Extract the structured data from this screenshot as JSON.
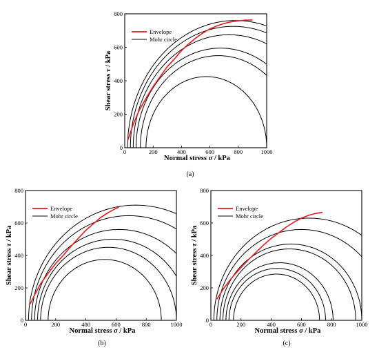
{
  "chart_data": [
    {
      "panel": "(a)",
      "type": "line",
      "xlabel": "Normal stress",
      "xsymbol": "σ",
      "xunit": "/ kPa",
      "ylabel": "Shear stress",
      "ysymbol": "τ",
      "yunit": "/ kPa",
      "xlim": [
        0,
        1000
      ],
      "ylim": [
        0,
        800
      ],
      "xticks": [
        0,
        200,
        400,
        600,
        800,
        1000
      ],
      "yticks": [
        0,
        200,
        400,
        600,
        800
      ],
      "legend": {
        "position": "top-left",
        "items": [
          {
            "name": "Envelope",
            "color": "#e8161d"
          },
          {
            "name": "Mohr circle",
            "color": "#000000"
          }
        ]
      },
      "mohr_circles": [
        {
          "sigma3": 20,
          "sigma1": 1540
        },
        {
          "sigma3": 40,
          "sigma1": 1490
        },
        {
          "sigma3": 60,
          "sigma1": 1410
        },
        {
          "sigma3": 80,
          "sigma1": 1270
        },
        {
          "sigma3": 110,
          "sigma1": 1210
        },
        {
          "sigma3": 150,
          "sigma1": 1000
        }
      ],
      "envelope": {
        "x": [
          20,
          60,
          100,
          150,
          200,
          250,
          300,
          350,
          400,
          450,
          500,
          550,
          600,
          650,
          700,
          750,
          800,
          850,
          900
        ],
        "y": [
          40,
          140,
          220,
          295,
          365,
          425,
          485,
          530,
          580,
          620,
          655,
          685,
          710,
          728,
          742,
          752,
          758,
          762,
          763
        ]
      }
    },
    {
      "panel": "(b)",
      "type": "line",
      "xlabel": "Normal stress",
      "xsymbol": "σ",
      "xunit": "/ kPa",
      "ylabel": "Shear stress",
      "ysymbol": "τ",
      "yunit": "/ kPa",
      "xlim": [
        0,
        1000
      ],
      "ylim": [
        0,
        800
      ],
      "xticks": [
        0,
        200,
        400,
        600,
        800,
        1000
      ],
      "yticks": [
        0,
        200,
        400,
        600,
        800
      ],
      "legend": {
        "position": "top-left",
        "items": [
          {
            "name": "Envelope",
            "color": "#e8161d"
          },
          {
            "name": "Mohr circle",
            "color": "#000000"
          }
        ]
      },
      "mohr_circles": [
        {
          "sigma3": 20,
          "sigma1": 1440
        },
        {
          "sigma3": 40,
          "sigma1": 1330
        },
        {
          "sigma3": 60,
          "sigma1": 1180
        },
        {
          "sigma3": 80,
          "sigma1": 1080
        },
        {
          "sigma3": 100,
          "sigma1": 1000
        },
        {
          "sigma3": 150,
          "sigma1": 900
        }
      ],
      "envelope": {
        "x": [
          30,
          60,
          100,
          150,
          200,
          250,
          300,
          350,
          400,
          450,
          500,
          550,
          600,
          620
        ],
        "y": [
          100,
          155,
          225,
          290,
          350,
          400,
          455,
          505,
          555,
          595,
          635,
          665,
          690,
          698
        ]
      }
    },
    {
      "panel": "(c)",
      "type": "line",
      "xlabel": "Normal stress",
      "xsymbol": "σ",
      "xunit": "/ kPa",
      "ylabel": "Shear stress",
      "ysymbol": "τ",
      "yunit": "/ kPa",
      "xlim": [
        0,
        1000
      ],
      "ylim": [
        0,
        800
      ],
      "xticks": [
        0,
        200,
        400,
        600,
        800,
        1000
      ],
      "yticks": [
        0,
        200,
        400,
        600,
        800
      ],
      "legend": {
        "position": "top-left",
        "items": [
          {
            "name": "Envelope",
            "color": "#e8161d"
          },
          {
            "name": "Mohr circle",
            "color": "#000000"
          }
        ]
      },
      "mohr_circles": [
        {
          "sigma3": 20,
          "sigma1": 1280
        },
        {
          "sigma3": 40,
          "sigma1": 1160
        },
        {
          "sigma3": 60,
          "sigma1": 1000
        },
        {
          "sigma3": 80,
          "sigma1": 960
        },
        {
          "sigma3": 100,
          "sigma1": 810
        },
        {
          "sigma3": 120,
          "sigma1": 760
        },
        {
          "sigma3": 150,
          "sigma1": 720
        }
      ],
      "envelope": {
        "x": [
          40,
          80,
          120,
          160,
          200,
          250,
          300,
          350,
          400,
          450,
          500,
          550,
          600,
          650,
          700,
          740
        ],
        "y": [
          130,
          190,
          240,
          285,
          325,
          375,
          420,
          465,
          505,
          540,
          575,
          605,
          630,
          648,
          660,
          665
        ]
      }
    }
  ]
}
